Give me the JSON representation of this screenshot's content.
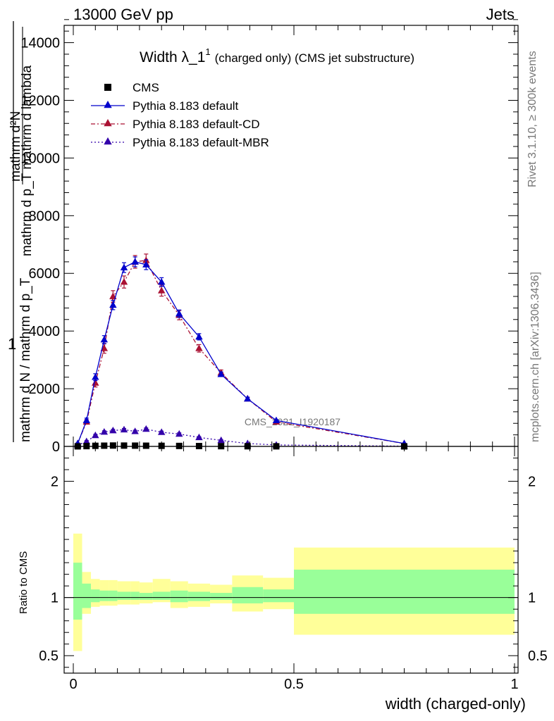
{
  "header": {
    "left": "13000 GeV pp",
    "right": "Jets"
  },
  "side_labels": {
    "rivet": "Rivet 3.1.10, ≥ 300k events",
    "mcplots": "mcplots.cern.ch [arXiv:1306.3436]"
  },
  "chart_data": [
    {
      "type": "line",
      "title": "Width λ_1",
      "title_sup": "1",
      "subtitle": "(charged only) (CMS jet substructure)",
      "watermark": "CMS_2021_I1920187",
      "ylabel_top": "1",
      "ylabel_frac_num": "mathrm d²N",
      "ylabel_frac_den": "mathrm d p_T mathrm d lambda",
      "ylabel_prefix": "mathrm d N / mathrm d p_T",
      "xlim": [
        0,
        1
      ],
      "ylim": [
        0,
        14600
      ],
      "yticks": [
        0,
        2000,
        4000,
        6000,
        8000,
        10000,
        12000,
        14000
      ],
      "ytick_labels": [
        "0",
        "2000",
        "4000",
        "6000",
        "8000",
        "10000",
        "12000",
        "14000"
      ],
      "legend_position": "top-left",
      "x": [
        0.01,
        0.03,
        0.05,
        0.07,
        0.09,
        0.115,
        0.14,
        0.165,
        0.2,
        0.24,
        0.285,
        0.335,
        0.395,
        0.46,
        0.75
      ],
      "series": [
        {
          "name": "CMS",
          "color": "#000000",
          "marker": "square",
          "values": [
            2,
            10,
            20,
            25,
            30,
            28,
            26,
            24,
            20,
            16,
            12,
            8,
            5,
            3,
            1
          ]
        },
        {
          "name": "Pythia 8.183 default",
          "color": "#0000cc",
          "marker": "triangle",
          "line": "solid",
          "values": [
            100,
            900,
            2400,
            3700,
            4900,
            6200,
            6400,
            6300,
            5700,
            4600,
            3800,
            2500,
            1650,
            900,
            100
          ],
          "errors": [
            20,
            80,
            120,
            140,
            160,
            170,
            170,
            170,
            150,
            130,
            110,
            80,
            50,
            30,
            10
          ]
        },
        {
          "name": "Pythia 8.183 default-CD",
          "color": "#aa1133",
          "marker": "triangle",
          "line": "dashdot",
          "values": [
            100,
            850,
            2200,
            3400,
            5200,
            5700,
            6400,
            6450,
            5400,
            4550,
            3400,
            2550,
            1650,
            850,
            100
          ],
          "errors": [
            20,
            80,
            140,
            170,
            200,
            210,
            220,
            220,
            190,
            160,
            130,
            100,
            60,
            40,
            10
          ]
        },
        {
          "name": "Pythia 8.183 default-MBR",
          "color": "#3300aa",
          "marker": "triangle",
          "line": "dotted",
          "values": [
            40,
            170,
            380,
            500,
            550,
            580,
            520,
            600,
            490,
            430,
            310,
            210,
            100,
            50,
            10
          ],
          "errors": [
            10,
            30,
            40,
            40,
            40,
            40,
            40,
            40,
            40,
            40,
            30,
            20,
            10,
            10,
            5
          ]
        }
      ]
    },
    {
      "type": "area",
      "ylabel": "Ratio to CMS",
      "xlabel": "width (charged-only)",
      "xlim": [
        0,
        1
      ],
      "xticks": [
        0,
        0.5,
        1
      ],
      "xtick_labels": [
        "0",
        "0.5",
        "1"
      ],
      "ylim": [
        0.35,
        2.3
      ],
      "yticks": [
        0.5,
        1,
        2
      ],
      "ytick_labels": [
        "0.5",
        "1",
        "2"
      ],
      "bins": [
        0,
        0.02,
        0.04,
        0.06,
        0.08,
        0.1,
        0.13,
        0.15,
        0.18,
        0.22,
        0.26,
        0.31,
        0.36,
        0.43,
        0.5,
        1.0
      ],
      "band_yellow": [
        [
          0.54,
          1.55
        ],
        [
          0.86,
          1.22
        ],
        [
          0.92,
          1.16
        ],
        [
          0.93,
          1.15
        ],
        [
          0.93,
          1.15
        ],
        [
          0.94,
          1.14
        ],
        [
          0.94,
          1.14
        ],
        [
          0.95,
          1.13
        ],
        [
          0.96,
          1.16
        ],
        [
          0.91,
          1.14
        ],
        [
          0.92,
          1.12
        ],
        [
          0.95,
          1.11
        ],
        [
          0.88,
          1.19
        ],
        [
          0.9,
          1.17
        ],
        [
          0.68,
          1.43
        ]
      ],
      "band_green": [
        [
          0.81,
          1.3
        ],
        [
          0.91,
          1.12
        ],
        [
          0.96,
          1.07
        ],
        [
          0.97,
          1.06
        ],
        [
          0.97,
          1.06
        ],
        [
          0.98,
          1.05
        ],
        [
          0.98,
          1.05
        ],
        [
          0.98,
          1.04
        ],
        [
          0.98,
          1.05
        ],
        [
          0.96,
          1.06
        ],
        [
          0.97,
          1.05
        ],
        [
          0.98,
          1.04
        ],
        [
          0.95,
          1.09
        ],
        [
          0.96,
          1.07
        ],
        [
          0.86,
          1.24
        ]
      ],
      "colors": {
        "yellow": "#ffff99",
        "green": "#99ff99",
        "reference": "#000000"
      }
    }
  ]
}
